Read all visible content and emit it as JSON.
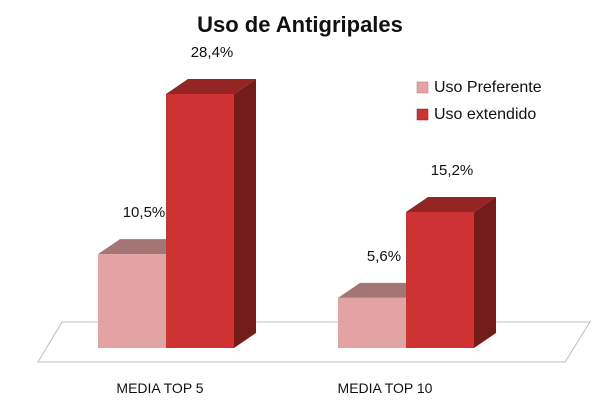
{
  "chart_data": {
    "type": "bar",
    "title": "Uso de Antigripales",
    "categories": [
      "MEDIA TOP 5",
      "MEDIA TOP 10"
    ],
    "series": [
      {
        "name": "Uso Preferente",
        "values": [
          10.5,
          5.6
        ],
        "value_labels": [
          "10,5%",
          "5,6%"
        ],
        "color": "#e3a3a3"
      },
      {
        "name": "Uso extendido",
        "values": [
          28.4,
          15.2
        ],
        "value_labels": [
          "28,4%",
          "15,2%"
        ],
        "color": "#cf3232"
      }
    ],
    "legend_position": "top-right",
    "grid": false,
    "style": "3d-column"
  }
}
